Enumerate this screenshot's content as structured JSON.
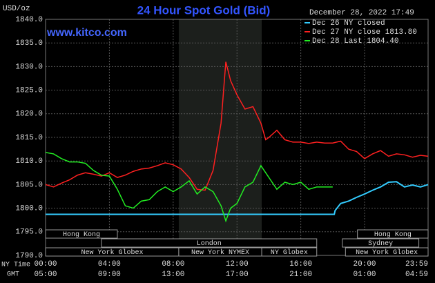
{
  "chart_data": {
    "type": "line",
    "title": "24 Hour Spot Gold (Bid)",
    "source": "www.kitco.com",
    "ylabel": "USD/oz",
    "timestamp": "December 28, 2022 17:49",
    "xlabel": "NY Time",
    "x2label": "GMT",
    "xlim": [
      0,
      23.98
    ],
    "ylim": [
      1790,
      1840
    ],
    "xticks": [
      {
        "value": 0,
        "label": "00:00"
      },
      {
        "value": 4,
        "label": "04:00"
      },
      {
        "value": 8,
        "label": "08:00"
      },
      {
        "value": 12,
        "label": "12:00"
      },
      {
        "value": 16,
        "label": "16:00"
      },
      {
        "value": 20,
        "label": "20:00"
      },
      {
        "value": 23.98,
        "label": "23:59"
      }
    ],
    "gmt_labels": [
      "05:00",
      "09:00",
      "13:00",
      "17:00",
      "21:00",
      "01:00",
      "04:59"
    ],
    "yticks": [
      {
        "value": 1790,
        "label": "1790.0"
      },
      {
        "value": 1795,
        "label": "1795.0"
      },
      {
        "value": 1800,
        "label": "1800.0"
      },
      {
        "value": 1805,
        "label": "1805.0"
      },
      {
        "value": 1810,
        "label": "1810.0"
      },
      {
        "value": 1815,
        "label": "1815.0"
      },
      {
        "value": 1820,
        "label": "1820.0"
      },
      {
        "value": 1825,
        "label": "1825.0"
      },
      {
        "value": 1830,
        "label": "1830.0"
      },
      {
        "value": 1835,
        "label": "1835.0"
      },
      {
        "value": 1840,
        "label": "1840.0"
      }
    ],
    "grid": true,
    "highlight_range": [
      8.35,
      13.55
    ],
    "series": [
      {
        "name": "Dec 26 NY closed",
        "color": "#33ccff",
        "x": [
          0,
          18.1,
          18.15,
          18.5,
          19,
          19.5,
          20,
          20.5,
          21,
          21.5,
          22,
          22.5,
          23,
          23.5,
          23.98
        ],
        "values": [
          1798.7,
          1798.7,
          1799.5,
          1801,
          1801.5,
          1802.3,
          1803,
          1803.8,
          1804.5,
          1805.5,
          1805.6,
          1804.5,
          1804.9,
          1804.5,
          1805
        ]
      },
      {
        "name": "Dec 27 NY close 1813.80",
        "color": "#ff2020",
        "x": [
          0,
          0.5,
          1,
          1.5,
          2,
          2.5,
          3,
          3.5,
          4,
          4.5,
          5,
          5.5,
          6,
          6.5,
          7,
          7.5,
          8,
          8.5,
          9,
          9.5,
          10,
          10.5,
          11,
          11.3,
          11.6,
          12,
          12.5,
          13,
          13.5,
          13.8,
          14,
          14.5,
          15,
          15.5,
          16,
          16.5,
          17,
          17.5,
          18,
          18.5,
          19,
          19.5,
          20,
          20.5,
          21,
          21.5,
          22,
          22.5,
          23,
          23.5,
          23.98
        ],
        "values": [
          1805,
          1804.5,
          1805.3,
          1806,
          1807,
          1807.5,
          1807.2,
          1806.8,
          1807.5,
          1806.5,
          1807,
          1807.8,
          1808.3,
          1808.5,
          1809,
          1809.6,
          1809.2,
          1808.3,
          1806.5,
          1804,
          1803.8,
          1808,
          1818,
          1831,
          1827,
          1824,
          1821,
          1821.5,
          1818,
          1814.5,
          1815,
          1816.5,
          1814.5,
          1814,
          1814,
          1813.7,
          1814,
          1813.8,
          1813.8,
          1814.2,
          1812.5,
          1812,
          1810.5,
          1811.5,
          1812.2,
          1811,
          1811.5,
          1811.3,
          1810.8,
          1811.2,
          1811
        ]
      },
      {
        "name": "Dec 28 Last 1804.40",
        "color": "#22ee22",
        "x": [
          0,
          0.5,
          1,
          1.5,
          2,
          2.5,
          3,
          3.5,
          4,
          4.5,
          5,
          5.5,
          6,
          6.5,
          7,
          7.5,
          8,
          8.5,
          9,
          9.5,
          10,
          10.5,
          11,
          11.3,
          11.6,
          12,
          12.5,
          13,
          13.5,
          14,
          14.5,
          15,
          15.5,
          16,
          16.5,
          17,
          17.5,
          18
        ],
        "values": [
          1811.8,
          1811.5,
          1810.5,
          1809.8,
          1809.8,
          1809.5,
          1808,
          1807,
          1806.8,
          1804,
          1800.5,
          1800,
          1801.5,
          1801.8,
          1803.5,
          1804.5,
          1803.5,
          1804.5,
          1805.8,
          1803,
          1804.5,
          1803.5,
          1800.5,
          1797.3,
          1800,
          1801,
          1804.5,
          1805.5,
          1809,
          1806.5,
          1804,
          1805.5,
          1805,
          1805.5,
          1804,
          1804.5,
          1804.5,
          1804.5
        ]
      }
    ],
    "sessions": [
      {
        "label": "Hong Kong",
        "start": 0,
        "end": 4.5,
        "row": 0
      },
      {
        "label": "Hong Kong",
        "start": 19.55,
        "end": 23.98,
        "row": 0
      },
      {
        "label": "London",
        "start": 3.5,
        "end": 17,
        "row": 1
      },
      {
        "label": "Sydney",
        "start": 18.6,
        "end": 23.4,
        "row": 1
      },
      {
        "label": "New York Globex",
        "start": 0,
        "end": 8.35,
        "row": 2
      },
      {
        "label": "New York NYMEX",
        "start": 8.35,
        "end": 13.55,
        "row": 2
      },
      {
        "label": "NY Globex",
        "start": 13.55,
        "end": 17,
        "row": 2
      },
      {
        "label": "New York Globex",
        "start": 18.8,
        "end": 23.98,
        "row": 2
      }
    ]
  }
}
